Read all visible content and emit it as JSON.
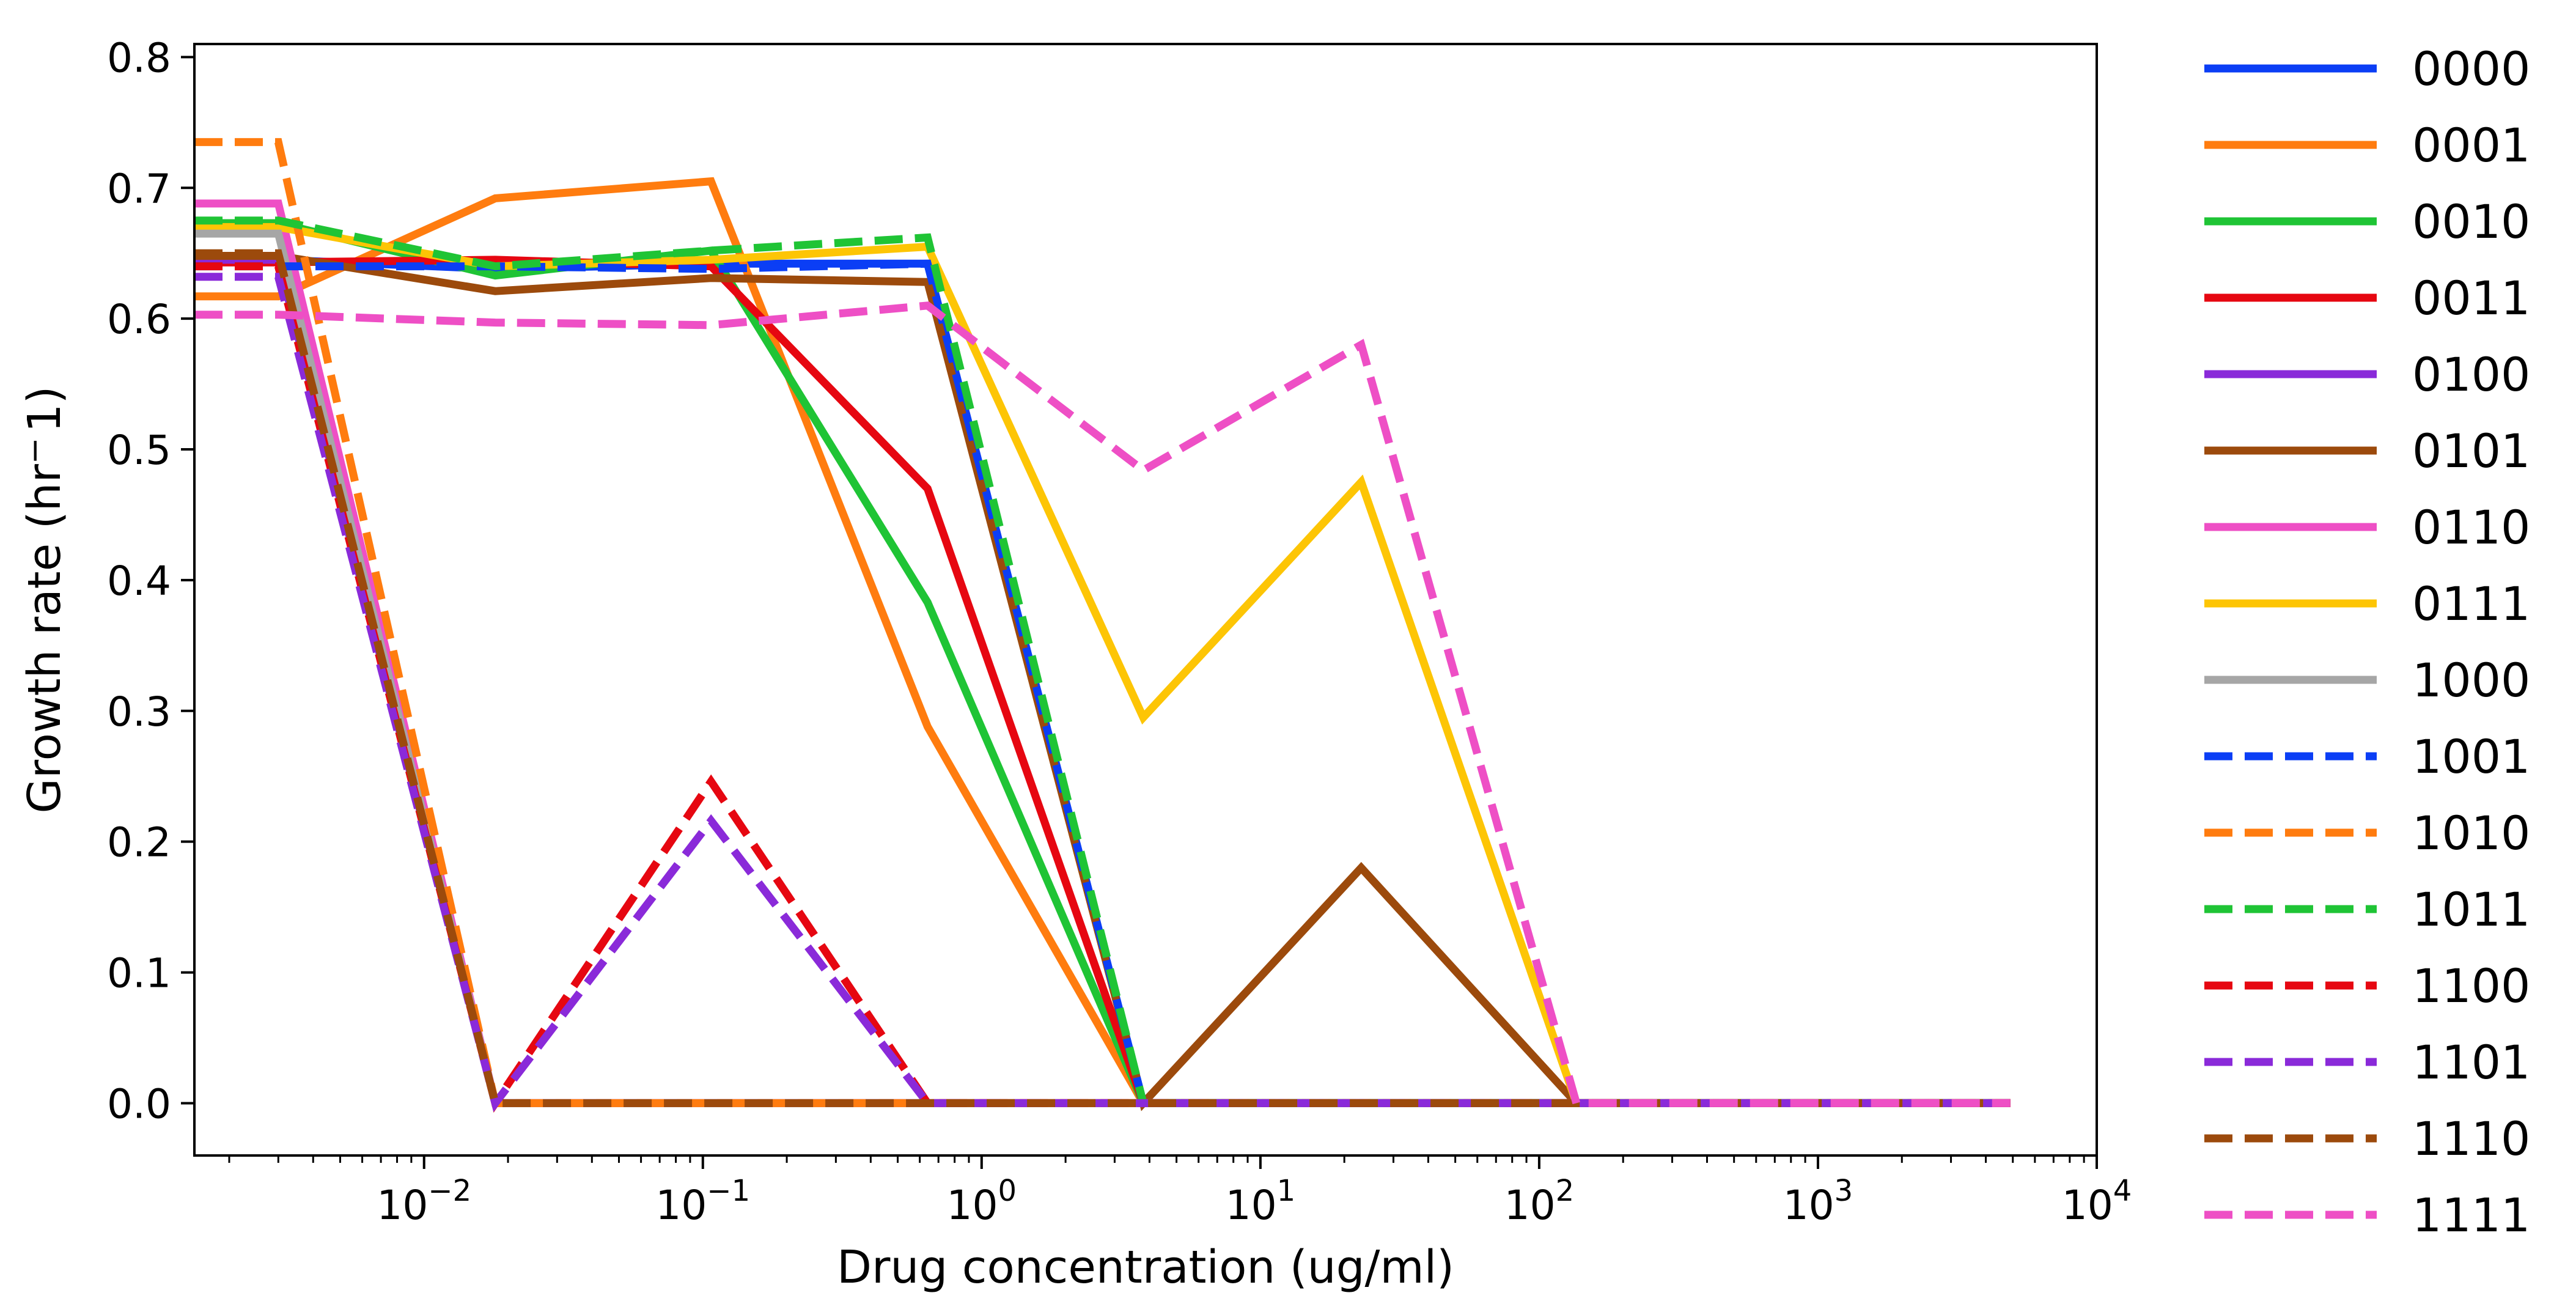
{
  "chart_data": {
    "type": "line",
    "xlabel": "Drug concentration (ug/ml)",
    "ylabel": "Growth rate (hr",
    "ylabel_sup": "−",
    "ylabel_tail": "1)",
    "xscale": "log",
    "xlim": [
      0.0015,
      10000
    ],
    "ylim": [
      -0.04,
      0.81
    ],
    "yticks": [
      "0.0",
      "0.1",
      "0.2",
      "0.3",
      "0.4",
      "0.5",
      "0.6",
      "0.7",
      "0.8"
    ],
    "xticks": [
      {
        "base": "10",
        "exp": "−2"
      },
      {
        "base": "10",
        "exp": "−1"
      },
      {
        "base": "10",
        "exp": "0"
      },
      {
        "base": "10",
        "exp": "1"
      },
      {
        "base": "10",
        "exp": "2"
      },
      {
        "base": "10",
        "exp": "3"
      },
      {
        "base": "10",
        "exp": "4"
      }
    ],
    "legend_position": "outside-right",
    "grid": false,
    "x": [
      0.0015,
      0.003,
      0.018,
      0.107,
      0.64,
      3.8,
      23,
      136,
      820,
      4900
    ],
    "series": [
      {
        "name": "0000",
        "color": "#0b3ef5",
        "dash": "solid",
        "values": [
          0.645,
          0.645,
          0.638,
          0.642,
          0.642,
          0.0,
          0.0,
          0.0,
          0.0,
          0.0
        ]
      },
      {
        "name": "0001",
        "color": "#ff7c0f",
        "dash": "solid",
        "values": [
          0.617,
          0.617,
          0.692,
          0.705,
          0.288,
          0.0,
          0.0,
          0.0,
          0.0,
          0.0
        ]
      },
      {
        "name": "0010",
        "color": "#1fc435",
        "dash": "solid",
        "values": [
          0.673,
          0.673,
          0.633,
          0.652,
          0.383,
          0.0,
          0.0,
          0.0,
          0.0,
          0.0
        ]
      },
      {
        "name": "0011",
        "color": "#e60711",
        "dash": "solid",
        "values": [
          0.643,
          0.643,
          0.645,
          0.64,
          0.47,
          0.0,
          0.0,
          0.0,
          0.0,
          0.0
        ]
      },
      {
        "name": "0100",
        "color": "#8a2ad9",
        "dash": "solid",
        "values": [
          0.645,
          0.645,
          0.0,
          0.0,
          0.0,
          0.0,
          0.0,
          0.0,
          0.0,
          0.0
        ]
      },
      {
        "name": "0101",
        "color": "#9c4a0c",
        "dash": "solid",
        "values": [
          0.648,
          0.648,
          0.621,
          0.631,
          0.628,
          0.0,
          0.18,
          0.0,
          0.0,
          0.0
        ]
      },
      {
        "name": "0110",
        "color": "#ee4fc5",
        "dash": "solid",
        "values": [
          0.688,
          0.688,
          0.0,
          0.0,
          0.0,
          0.0,
          0.0,
          0.0,
          0.0,
          0.0
        ]
      },
      {
        "name": "0111",
        "color": "#fdc505",
        "dash": "solid",
        "values": [
          0.67,
          0.67,
          0.64,
          0.645,
          0.655,
          0.295,
          0.475,
          0.0,
          0.0,
          0.0
        ]
      },
      {
        "name": "1000",
        "color": "#a6a6a6",
        "dash": "solid",
        "values": [
          0.665,
          0.665,
          0.0,
          0.0,
          0.0,
          0.0,
          0.0,
          0.0,
          0.0,
          0.0
        ]
      },
      {
        "name": "1001",
        "color": "#0b3ef5",
        "dash": "dashed",
        "values": [
          0.64,
          0.64,
          0.64,
          0.638,
          0.642,
          0.0,
          0.0,
          0.0,
          0.0,
          0.0
        ]
      },
      {
        "name": "1010",
        "color": "#ff7c0f",
        "dash": "dashed",
        "values": [
          0.735,
          0.735,
          0.0,
          0.0,
          0.0,
          0.0,
          0.0,
          0.0,
          0.0,
          0.0
        ]
      },
      {
        "name": "1011",
        "color": "#1fc435",
        "dash": "dashed",
        "values": [
          0.675,
          0.675,
          0.64,
          0.652,
          0.662,
          0.0,
          0.0,
          0.0,
          0.0,
          0.0
        ]
      },
      {
        "name": "1100",
        "color": "#e60711",
        "dash": "dashed",
        "values": [
          0.64,
          0.64,
          0.0,
          0.246,
          0.0,
          0.0,
          0.0,
          0.0,
          0.0,
          0.0
        ]
      },
      {
        "name": "1101",
        "color": "#8a2ad9",
        "dash": "dashed",
        "values": [
          0.632,
          0.632,
          0.0,
          0.216,
          0.0,
          0.0,
          0.0,
          0.0,
          0.0,
          0.0
        ]
      },
      {
        "name": "1110",
        "color": "#9c4a0c",
        "dash": "dashed",
        "values": [
          0.65,
          0.65,
          0.0,
          0.0,
          0.0,
          0.0,
          0.0,
          0.0,
          0.0,
          0.0
        ]
      },
      {
        "name": "1111",
        "color": "#ee4fc5",
        "dash": "dashed",
        "values": [
          0.603,
          0.603,
          0.597,
          0.595,
          0.61,
          0.484,
          0.58,
          0.0,
          0.0,
          0.0
        ]
      }
    ]
  }
}
